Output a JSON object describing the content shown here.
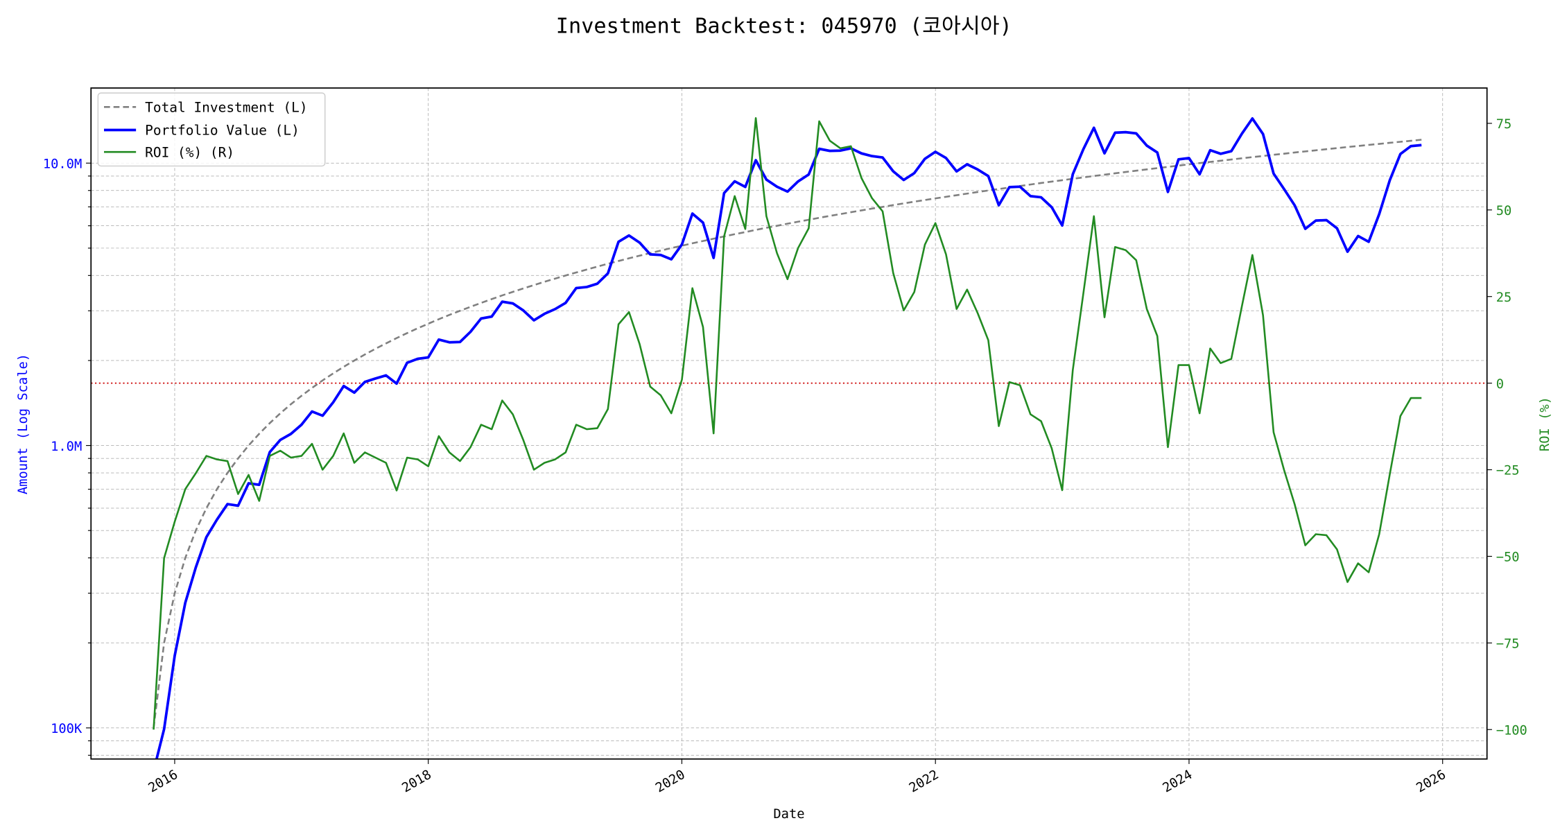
{
  "chart_data": {
    "type": "line",
    "title": "Investment Backtest: 045970 (코아시아)",
    "xlabel": "Date",
    "ylabel_left": "Amount (Log Scale)",
    "ylabel_right": "ROI (%)",
    "left_scale": "log",
    "xlim": [
      2015.34,
      2026.35
    ],
    "ylim_left": [
      77600,
      18450000
    ],
    "ylim_right": [
      -108.5,
      85.2
    ],
    "grid": true,
    "legend_position": "top-left",
    "x_ticks": [
      "2016",
      "2018",
      "2020",
      "2022",
      "2024",
      "2026"
    ],
    "y_left_ticks": [
      {
        "value": 100000,
        "label": "100K"
      },
      {
        "value": 1000000,
        "label": "1.0M"
      },
      {
        "value": 10000000,
        "label": "10.0M"
      }
    ],
    "y_right_ticks": [
      {
        "value": 75,
        "label": "75"
      },
      {
        "value": 50,
        "label": "50"
      },
      {
        "value": 25,
        "label": "25"
      },
      {
        "value": 0,
        "label": "0"
      },
      {
        "value": -25,
        "label": "−25"
      },
      {
        "value": -50,
        "label": "−50"
      },
      {
        "value": -75,
        "label": "−75"
      },
      {
        "value": -100,
        "label": "−100"
      }
    ],
    "reference_line": {
      "axis": "right",
      "value": 0,
      "color": "#cc0000"
    },
    "dates": [
      "2015-10",
      "2015-11",
      "2015-12",
      "2016-01",
      "2016-02",
      "2016-03",
      "2016-04",
      "2016-05",
      "2016-06",
      "2016-07",
      "2016-08",
      "2016-09",
      "2016-10",
      "2016-11",
      "2016-12",
      "2017-01",
      "2017-02",
      "2017-03",
      "2017-04",
      "2017-05",
      "2017-06",
      "2017-07",
      "2017-08",
      "2017-09",
      "2017-10",
      "2017-11",
      "2017-12",
      "2018-01",
      "2018-02",
      "2018-03",
      "2018-04",
      "2018-05",
      "2018-06",
      "2018-07",
      "2018-08",
      "2018-09",
      "2018-10",
      "2018-11",
      "2018-12",
      "2019-01",
      "2019-02",
      "2019-03",
      "2019-04",
      "2019-05",
      "2019-06",
      "2019-07",
      "2019-08",
      "2019-09",
      "2019-10",
      "2019-11",
      "2019-12",
      "2020-01",
      "2020-02",
      "2020-03",
      "2020-04",
      "2020-05",
      "2020-06",
      "2020-07",
      "2020-08",
      "2020-09",
      "2020-10",
      "2020-11",
      "2020-12",
      "2021-01",
      "2021-02",
      "2021-03",
      "2021-04",
      "2021-05",
      "2021-06",
      "2021-07",
      "2021-08",
      "2021-09",
      "2021-10",
      "2021-11",
      "2021-12",
      "2022-01",
      "2022-02",
      "2022-03",
      "2022-04",
      "2022-05",
      "2022-06",
      "2022-07",
      "2022-08",
      "2022-09",
      "2022-10",
      "2022-11",
      "2022-12",
      "2023-01",
      "2023-02",
      "2023-03",
      "2023-04",
      "2023-05",
      "2023-06",
      "2023-07",
      "2023-08",
      "2023-09",
      "2023-10",
      "2023-11",
      "2023-12",
      "2024-01",
      "2024-02",
      "2024-03",
      "2024-04",
      "2024-05",
      "2024-06",
      "2024-07",
      "2024-08",
      "2024-09",
      "2024-10",
      "2024-11",
      "2024-12",
      "2025-01",
      "2025-02",
      "2025-03",
      "2025-04",
      "2025-05",
      "2025-06",
      "2025-07",
      "2025-08",
      "2025-09",
      "2025-10"
    ],
    "series": [
      {
        "name": "Total Investment (L)",
        "axis": "left",
        "color": "#808080",
        "style": "dashed",
        "values": [
          100000,
          200000,
          300000,
          400000,
          500000,
          600000,
          700000,
          800000,
          900000,
          1000000,
          1100000,
          1200000,
          1300000,
          1400000,
          1500000,
          1600000,
          1700000,
          1800000,
          1900000,
          2000000,
          2100000,
          2200000,
          2300000,
          2400000,
          2500000,
          2600000,
          2700000,
          2800000,
          2900000,
          3000000,
          3100000,
          3200000,
          3300000,
          3400000,
          3500000,
          3600000,
          3700000,
          3800000,
          3900000,
          4000000,
          4100000,
          4200000,
          4300000,
          4400000,
          4500000,
          4600000,
          4700000,
          4800000,
          4900000,
          5000000,
          5100000,
          5200000,
          5300000,
          5400000,
          5500000,
          5600000,
          5700000,
          5800000,
          5900000,
          6000000,
          6100000,
          6200000,
          6300000,
          6400000,
          6500000,
          6600000,
          6700000,
          6800000,
          6900000,
          7000000,
          7100000,
          7200000,
          7300000,
          7400000,
          7500000,
          7600000,
          7700000,
          7800000,
          7900000,
          8000000,
          8100000,
          8200000,
          8300000,
          8400000,
          8500000,
          8600000,
          8700000,
          8800000,
          8900000,
          9000000,
          9100000,
          9200000,
          9300000,
          9400000,
          9500000,
          9600000,
          9700000,
          9800000,
          9900000,
          10000000,
          10100000,
          10200000,
          10300000,
          10400000,
          10500000,
          10600000,
          10700000,
          10800000,
          10900000,
          11000000,
          11100000,
          11200000,
          11300000,
          11400000,
          11500000,
          11600000,
          11700000,
          11800000,
          11900000,
          12000000,
          12100000
        ]
      },
      {
        "name": "Portfolio Value (L)",
        "axis": "left",
        "color": "#0000ff",
        "style": "solid",
        "values": [
          0,
          99000,
          180000,
          277600,
          370000,
          474000,
          546000,
          620000,
          612000,
          735000,
          726000,
          948000,
          1046500,
          1099000,
          1185000,
          1320000,
          1275000,
          1422000,
          1624500,
          1540000,
          1680000,
          1727000,
          1771000,
          1656000,
          1962500,
          2028000,
          2052000,
          2371600,
          2320000,
          2325000,
          2526500,
          2816000,
          2861100,
          3230000,
          3185000,
          3006000,
          2775000,
          2926000,
          3042000,
          3200000,
          3608000,
          3641400,
          3741000,
          4070000,
          5265000,
          5543000,
          5231100,
          4752000,
          4728500,
          4565000,
          5151000,
          6624800,
          6158600,
          4617000,
          7832000,
          8624000,
          8236500,
          10237000,
          8743800,
          8250000,
          7930000,
          8618000,
          9116100,
          11238400,
          11050000,
          11074800,
          11282800,
          10825600,
          10584600,
          10472000,
          9357800,
          8712000,
          9219900,
          10360000,
          10965000,
          10427200,
          9347800,
          9906000,
          9495800,
          8992000,
          7095600,
          8224600,
          8250200,
          7644000,
          7565000,
          6983200,
          6011700,
          9134400,
          11214000,
          13338000,
          10829000,
          12815600,
          12871200,
          12737000,
          11533000,
          10905600,
          7905500,
          10309600,
          10414800,
          9130000,
          11110000,
          10791600,
          11021000,
          12708800,
          14385000,
          12677600,
          9180600,
          8089200,
          7085000,
          5852000,
          6260400,
          6283200,
          5876000,
          4856400,
          5520000,
          5266400,
          6598800,
          8696600,
          10769500,
          11484000,
          11579700
        ]
      },
      {
        "name": "ROI (%) (R)",
        "axis": "right",
        "color": "#228b22",
        "style": "solid",
        "values": [
          -100,
          -50.5,
          -40,
          -30.6,
          -26,
          -21,
          -22,
          -22.5,
          -32,
          -26.5,
          -34,
          -21,
          -19.5,
          -21.5,
          -21,
          -17.5,
          -25,
          -21,
          -14.5,
          -23,
          -20,
          -21.5,
          -23,
          -31,
          -21.5,
          -22,
          -24,
          -15.3,
          -20,
          -22.5,
          -18.5,
          -12,
          -13.3,
          -5,
          -9,
          -16.5,
          -25,
          -23,
          -22,
          -20,
          -12,
          -13.3,
          -13,
          -7.5,
          17,
          20.5,
          11.3,
          -1,
          -3.5,
          -8.7,
          1,
          27.4,
          16.2,
          -14.5,
          42.4,
          54,
          44.5,
          76.5,
          48.2,
          37.5,
          30,
          39,
          44.7,
          75.6,
          70,
          67.8,
          68.4,
          59.2,
          53.4,
          49.6,
          31.8,
          21,
          26.3,
          40,
          46.2,
          37.2,
          21.4,
          27,
          20.2,
          12.4,
          -12.4,
          0.3,
          -0.6,
          -9,
          -11,
          -18.8,
          -30.9,
          3.8,
          26,
          48.2,
          19,
          39.3,
          38.4,
          35.5,
          21.4,
          13.6,
          -18.5,
          5.2,
          5.2,
          -8.7,
          10,
          5.8,
          7,
          22.2,
          37,
          19.6,
          -14.2,
          -25.1,
          -35,
          -46.8,
          -43.6,
          -43.9,
          -48,
          -57.4,
          -52,
          -54.6,
          -43.6,
          -26.3,
          -9.5,
          -4.3,
          -4.3
        ]
      }
    ]
  }
}
